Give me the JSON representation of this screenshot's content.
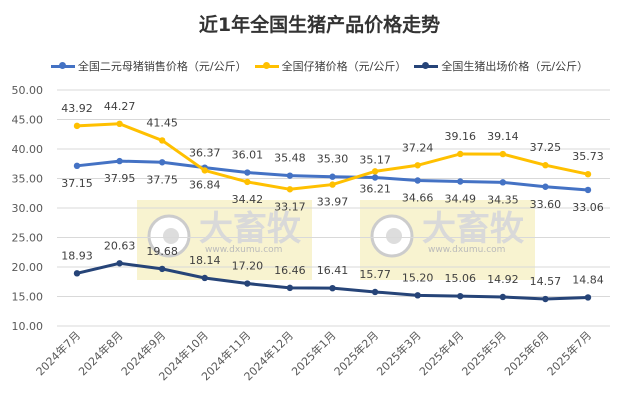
{
  "chart_data": {
    "type": "line",
    "title": "近1年全国生猪产品价格走势",
    "categories": [
      "2024年7月",
      "2024年8月",
      "2024年9月",
      "2024年10月",
      "2024年11月",
      "2024年12月",
      "2025年1月",
      "2025年2月",
      "2025年3月",
      "2025年4月",
      "2025年5月",
      "2025年6月",
      "2025年7月"
    ],
    "ylim": [
      10,
      50
    ],
    "yticks": [
      "10.00",
      "15.00",
      "20.00",
      "25.00",
      "30.00",
      "35.00",
      "40.00",
      "45.00",
      "50.00"
    ],
    "grid": true,
    "legend_position": "top",
    "series": [
      {
        "name": "全国二元母猪销售价格（元/公斤）",
        "color": "#4472C4",
        "values": [
          37.15,
          37.95,
          37.75,
          36.84,
          36.01,
          35.48,
          35.3,
          35.17,
          34.66,
          34.49,
          34.35,
          33.6,
          33.06
        ]
      },
      {
        "name": "全国仔猪价格（元/公斤）",
        "color": "#FFC000",
        "values": [
          43.92,
          44.27,
          41.45,
          36.37,
          34.42,
          33.17,
          33.97,
          36.21,
          37.24,
          39.16,
          39.14,
          37.25,
          35.73
        ]
      },
      {
        "name": "全国生猪出场价格（元/公斤）",
        "color": "#264478",
        "values": [
          18.93,
          20.63,
          19.68,
          18.14,
          17.2,
          16.46,
          16.41,
          15.77,
          15.2,
          15.06,
          14.92,
          14.57,
          14.84
        ]
      }
    ]
  },
  "watermark": {
    "brand": "大畜牧",
    "url": "www.dxumu.com"
  }
}
